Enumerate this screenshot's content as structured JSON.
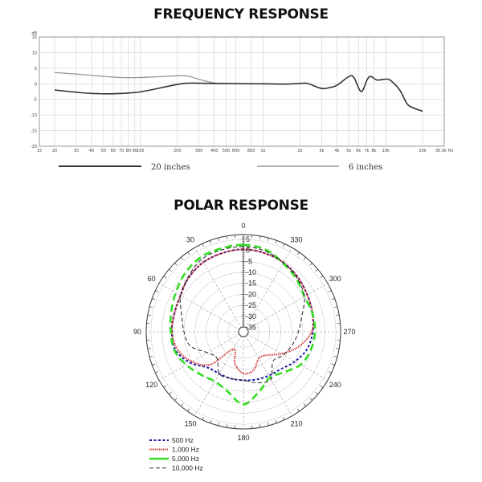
{
  "chart_data": [
    {
      "type": "line",
      "title": "FREQUENCY RESPONSE",
      "xlabel": "",
      "ylabel": "dB",
      "x_unit": "Hz",
      "x_scale": "log",
      "xlim": [
        15,
        30000
      ],
      "ylim": [
        -20,
        15
      ],
      "grid": true,
      "legend_placement": "bottom",
      "x_ticks": [
        15,
        20,
        30,
        40,
        50,
        60,
        70,
        80,
        90,
        100,
        200,
        300,
        400,
        500,
        600,
        800,
        1000,
        2000,
        3000,
        4000,
        5000,
        6000,
        7000,
        8000,
        10000,
        20000,
        30000
      ],
      "x_tick_labels": [
        "15",
        "20",
        "30",
        "40",
        "50",
        "60",
        "70",
        "80",
        "90",
        "100",
        "200",
        "300",
        "400",
        "500",
        "600",
        "800",
        "1k",
        "2k",
        "3k",
        "4k",
        "5k",
        "6k",
        "7k",
        "8k",
        "10k",
        "20k",
        "30.0k Hz"
      ],
      "y_ticks": [
        15,
        10,
        5,
        0,
        -5,
        -10,
        -15,
        -20
      ],
      "y_tick_labels": [
        "15",
        "10",
        "5",
        "0",
        "-5",
        "-10",
        "-15",
        "-20"
      ],
      "series": [
        {
          "name": "20 inches",
          "color": "#333333",
          "x": [
            20,
            30,
            40,
            60,
            90,
            120,
            200,
            250,
            400,
            800,
            1000,
            1500,
            2000,
            2300,
            3000,
            3500,
            4000,
            5000,
            5500,
            6300,
            7000,
            7500,
            8500,
            10000,
            11000,
            13000,
            15000,
            17000,
            20000
          ],
          "y": [
            -2,
            -2.7,
            -3.1,
            -3.2,
            -2.8,
            -2,
            -0.2,
            0.2,
            0.1,
            0,
            0,
            -0.1,
            0.1,
            0.1,
            -1.5,
            -1.2,
            -0.5,
            2.3,
            2,
            -2.5,
            1,
            2.4,
            1.2,
            1.5,
            1,
            -2,
            -6.5,
            -7.8,
            -8.8
          ]
        },
        {
          "name": "6 inches",
          "color": "#999999",
          "x": [
            20,
            30,
            50,
            70,
            100,
            150,
            220,
            260,
            300,
            400,
            500,
            600
          ],
          "y": [
            3.6,
            3.1,
            2.4,
            2,
            2,
            2.3,
            2.6,
            2.2,
            1.4,
            0.3,
            0.1,
            0
          ]
        }
      ]
    },
    {
      "type": "polar",
      "title": "POLAR RESPONSE",
      "angle_unit": "degrees",
      "angle_direction": "counterclockwise, 0 at top",
      "angle_ticks": [
        0,
        30,
        60,
        90,
        120,
        150,
        180,
        210,
        240,
        270,
        300,
        330
      ],
      "angle_tick_labels": [
        "0",
        "30",
        "60",
        "90",
        "120",
        "150",
        "180",
        "210",
        "240",
        "270",
        "300",
        "330"
      ],
      "radial_ticks": [
        5,
        0,
        -5,
        -10,
        -15,
        -20,
        -25,
        -30,
        -35
      ],
      "radial_tick_labels": [
        "5",
        "0",
        "-5",
        "-10",
        "-15",
        "-20",
        "-25",
        "-30",
        "-35"
      ],
      "rlim": [
        -37,
        7
      ],
      "grid": true,
      "legend_placement": "bottom-left",
      "angles": [
        0,
        15,
        30,
        45,
        60,
        75,
        90,
        105,
        120,
        135,
        150,
        165,
        180,
        195,
        210,
        225,
        240,
        255,
        270,
        285,
        300,
        315,
        330,
        345
      ],
      "series": [
        {
          "name": "500 Hz",
          "color": "#1a1aa8",
          "style": "dashed-short",
          "r": [
            0.5,
            0,
            -0.6,
            -2,
            -4,
            -4.5,
            -4.5,
            -5,
            -9,
            -14,
            -15,
            -15,
            -15,
            -14.5,
            -14,
            -13,
            -10,
            -7,
            -5.5,
            -4.5,
            -3.5,
            -2,
            -0.7,
            0
          ]
        },
        {
          "name": "1,000 Hz",
          "color": "#d42020",
          "style": "dotted",
          "r": [
            0.5,
            0,
            -0.6,
            -2,
            -4,
            -4.5,
            -4.5,
            -6,
            -10,
            -16,
            -28,
            -22,
            -18,
            -19,
            -23,
            -22,
            -17,
            -11,
            -6,
            -4.5,
            -3.5,
            -2,
            -0.7,
            0
          ]
        },
        {
          "name": "5,000 Hz",
          "color": "#33dd22",
          "style": "dashed-long",
          "r": [
            2.5,
            2.2,
            2,
            0.5,
            -1.5,
            -3,
            -4,
            -4.5,
            -7,
            -9.5,
            -11,
            -9,
            -4,
            -9,
            -13,
            -11,
            -7,
            -5.3,
            -4.5,
            -4.5,
            -5,
            -3,
            -1,
            1.7
          ]
        },
        {
          "name": "10,000 Hz",
          "color": "#222222",
          "style": "dashed",
          "r": [
            1.7,
            1.5,
            1,
            -1.6,
            -4,
            -8,
            -10,
            -12,
            -18,
            -20,
            -15,
            -15,
            -15,
            -13,
            -12,
            -18,
            -16,
            -14,
            -12,
            -9.5,
            -5,
            -2.5,
            -0.7,
            1
          ]
        }
      ]
    }
  ]
}
